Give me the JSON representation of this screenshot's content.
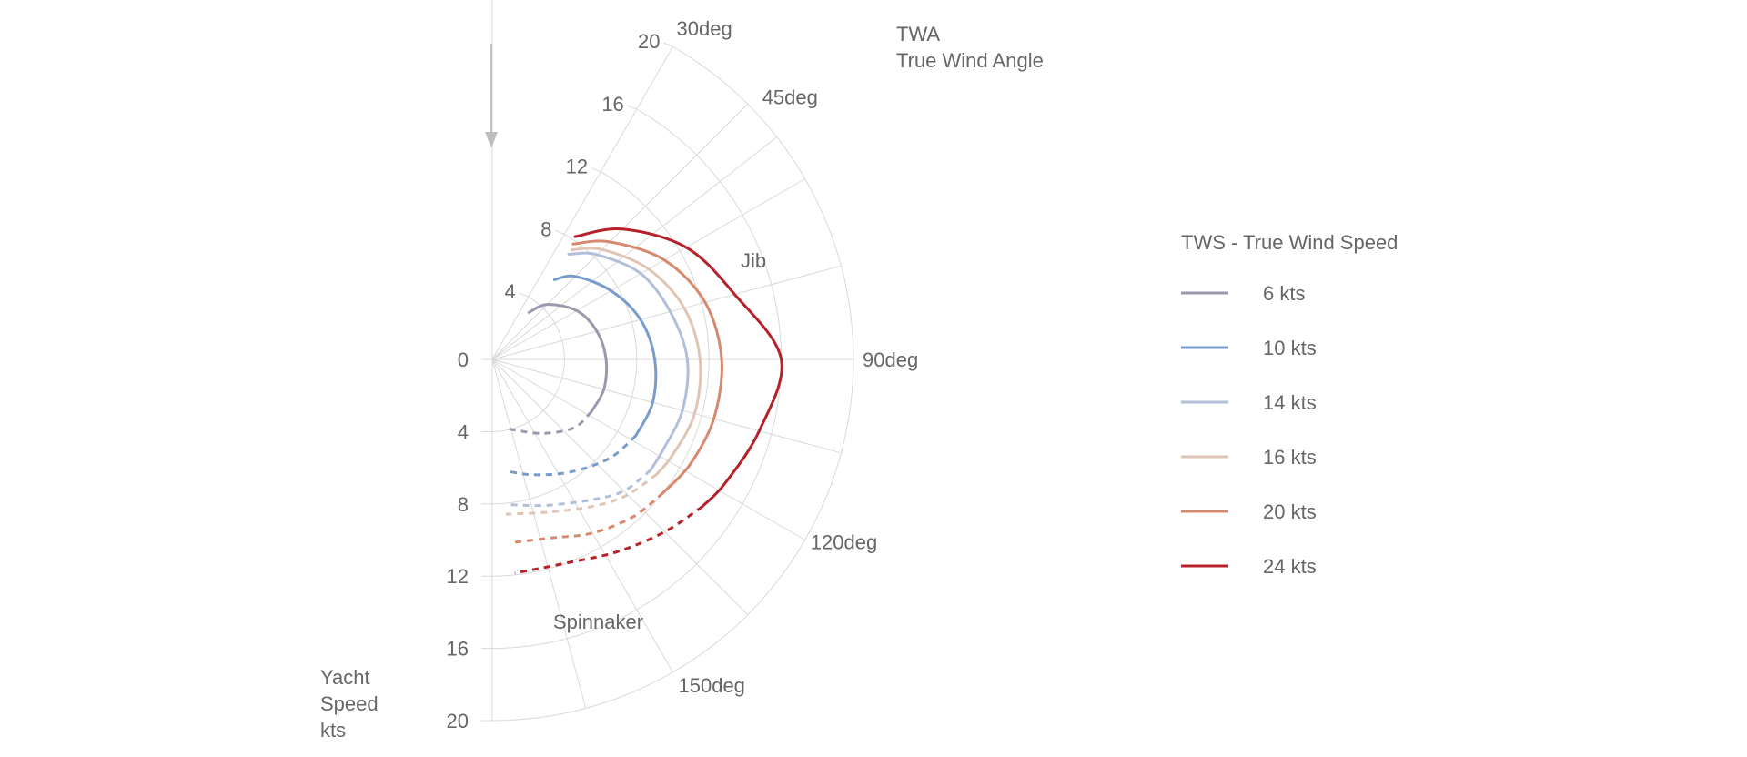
{
  "chart_data": {
    "type": "polar-line",
    "title": "",
    "angle_label_lines": [
      "TWA",
      "True Wind Angle"
    ],
    "radius_label_lines": [
      "Yacht",
      "Speed",
      "kts"
    ],
    "legend_title": "TWS - True Wind Speed",
    "radial_ticks": [
      0,
      4,
      8,
      12,
      16,
      20
    ],
    "angle_ticks": [
      {
        "angle": 30,
        "label": "30deg"
      },
      {
        "angle": 45,
        "label": "45deg"
      },
      {
        "angle": 90,
        "label": "90deg"
      },
      {
        "angle": 120,
        "label": "120deg"
      },
      {
        "angle": 150,
        "label": "150deg"
      }
    ],
    "spokes": [
      0,
      30,
      45,
      52,
      60,
      75,
      90,
      105,
      120,
      135,
      150,
      165,
      180
    ],
    "rlim": [
      0,
      20
    ],
    "annotations": [
      "Jib",
      "Spinnaker"
    ],
    "series": [
      {
        "name": "6 kts",
        "color": "#9a99ae",
        "jib": [
          [
            38,
            3.3
          ],
          [
            45,
            4.3
          ],
          [
            60,
            5.4
          ],
          [
            75,
            6.0
          ],
          [
            90,
            6.3
          ],
          [
            105,
            6.4
          ],
          [
            118,
            6.2
          ]
        ],
        "spinnaker": [
          [
            118,
            6.2
          ],
          [
            130,
            5.9
          ],
          [
            145,
            5.0
          ],
          [
            160,
            4.2
          ],
          [
            168,
            3.9
          ]
        ]
      },
      {
        "name": "10 kts",
        "color": "#7a9ccb",
        "jib": [
          [
            38,
            5.6
          ],
          [
            45,
            6.5
          ],
          [
            60,
            7.6
          ],
          [
            75,
            8.5
          ],
          [
            90,
            9.0
          ],
          [
            105,
            9.2
          ],
          [
            118,
            9.0
          ]
        ],
        "spinnaker": [
          [
            118,
            9.0
          ],
          [
            130,
            8.5
          ],
          [
            145,
            7.6
          ],
          [
            160,
            6.8
          ],
          [
            171,
            6.3
          ]
        ]
      },
      {
        "name": "14 kts",
        "color": "#b3bed8",
        "jib": [
          [
            36,
            7.2
          ],
          [
            45,
            8.2
          ],
          [
            60,
            9.5
          ],
          [
            75,
            10.2
          ],
          [
            90,
            10.8
          ],
          [
            105,
            10.9
          ],
          [
            118,
            10.7
          ],
          [
            125,
            10.7
          ]
        ],
        "spinnaker": [
          [
            125,
            10.7
          ],
          [
            135,
            10.3
          ],
          [
            145,
            9.5
          ],
          [
            160,
            8.6
          ],
          [
            173,
            8.1
          ]
        ]
      },
      {
        "name": "16 kts",
        "color": "#e0c5b5",
        "jib": [
          [
            36,
            7.5
          ],
          [
            45,
            8.6
          ],
          [
            60,
            10.0
          ],
          [
            75,
            11.0
          ],
          [
            90,
            11.5
          ],
          [
            105,
            11.6
          ],
          [
            118,
            11.3
          ],
          [
            125,
            11.1
          ]
        ],
        "spinnaker": [
          [
            125,
            11.1
          ],
          [
            135,
            10.6
          ],
          [
            145,
            9.9
          ],
          [
            160,
            9.0
          ],
          [
            175,
            8.6
          ]
        ]
      },
      {
        "name": "20 kts",
        "color": "#d58a6e",
        "jib": [
          [
            35,
            7.8
          ],
          [
            45,
            9.2
          ],
          [
            60,
            11.0
          ],
          [
            75,
            12.2
          ],
          [
            90,
            12.7
          ],
          [
            105,
            12.7
          ],
          [
            118,
            12.4
          ],
          [
            128,
            12.0
          ]
        ],
        "spinnaker": [
          [
            128,
            12.0
          ],
          [
            138,
            11.7
          ],
          [
            150,
            11.1
          ],
          [
            162,
            10.4
          ],
          [
            174,
            10.2
          ]
        ]
      },
      {
        "name": "24 kts",
        "color": "#b5222a",
        "jib": [
          [
            34,
            8.2
          ],
          [
            45,
            10.2
          ],
          [
            60,
            12.4
          ],
          [
            75,
            13.9
          ],
          [
            90,
            16.0
          ],
          [
            105,
            15.3
          ],
          [
            118,
            14.6
          ],
          [
            125,
            14.2
          ]
        ],
        "spinnaker": [
          [
            125,
            14.2
          ],
          [
            135,
            13.5
          ],
          [
            147,
            12.7
          ],
          [
            160,
            12.0
          ],
          [
            174,
            11.9
          ]
        ]
      }
    ]
  }
}
